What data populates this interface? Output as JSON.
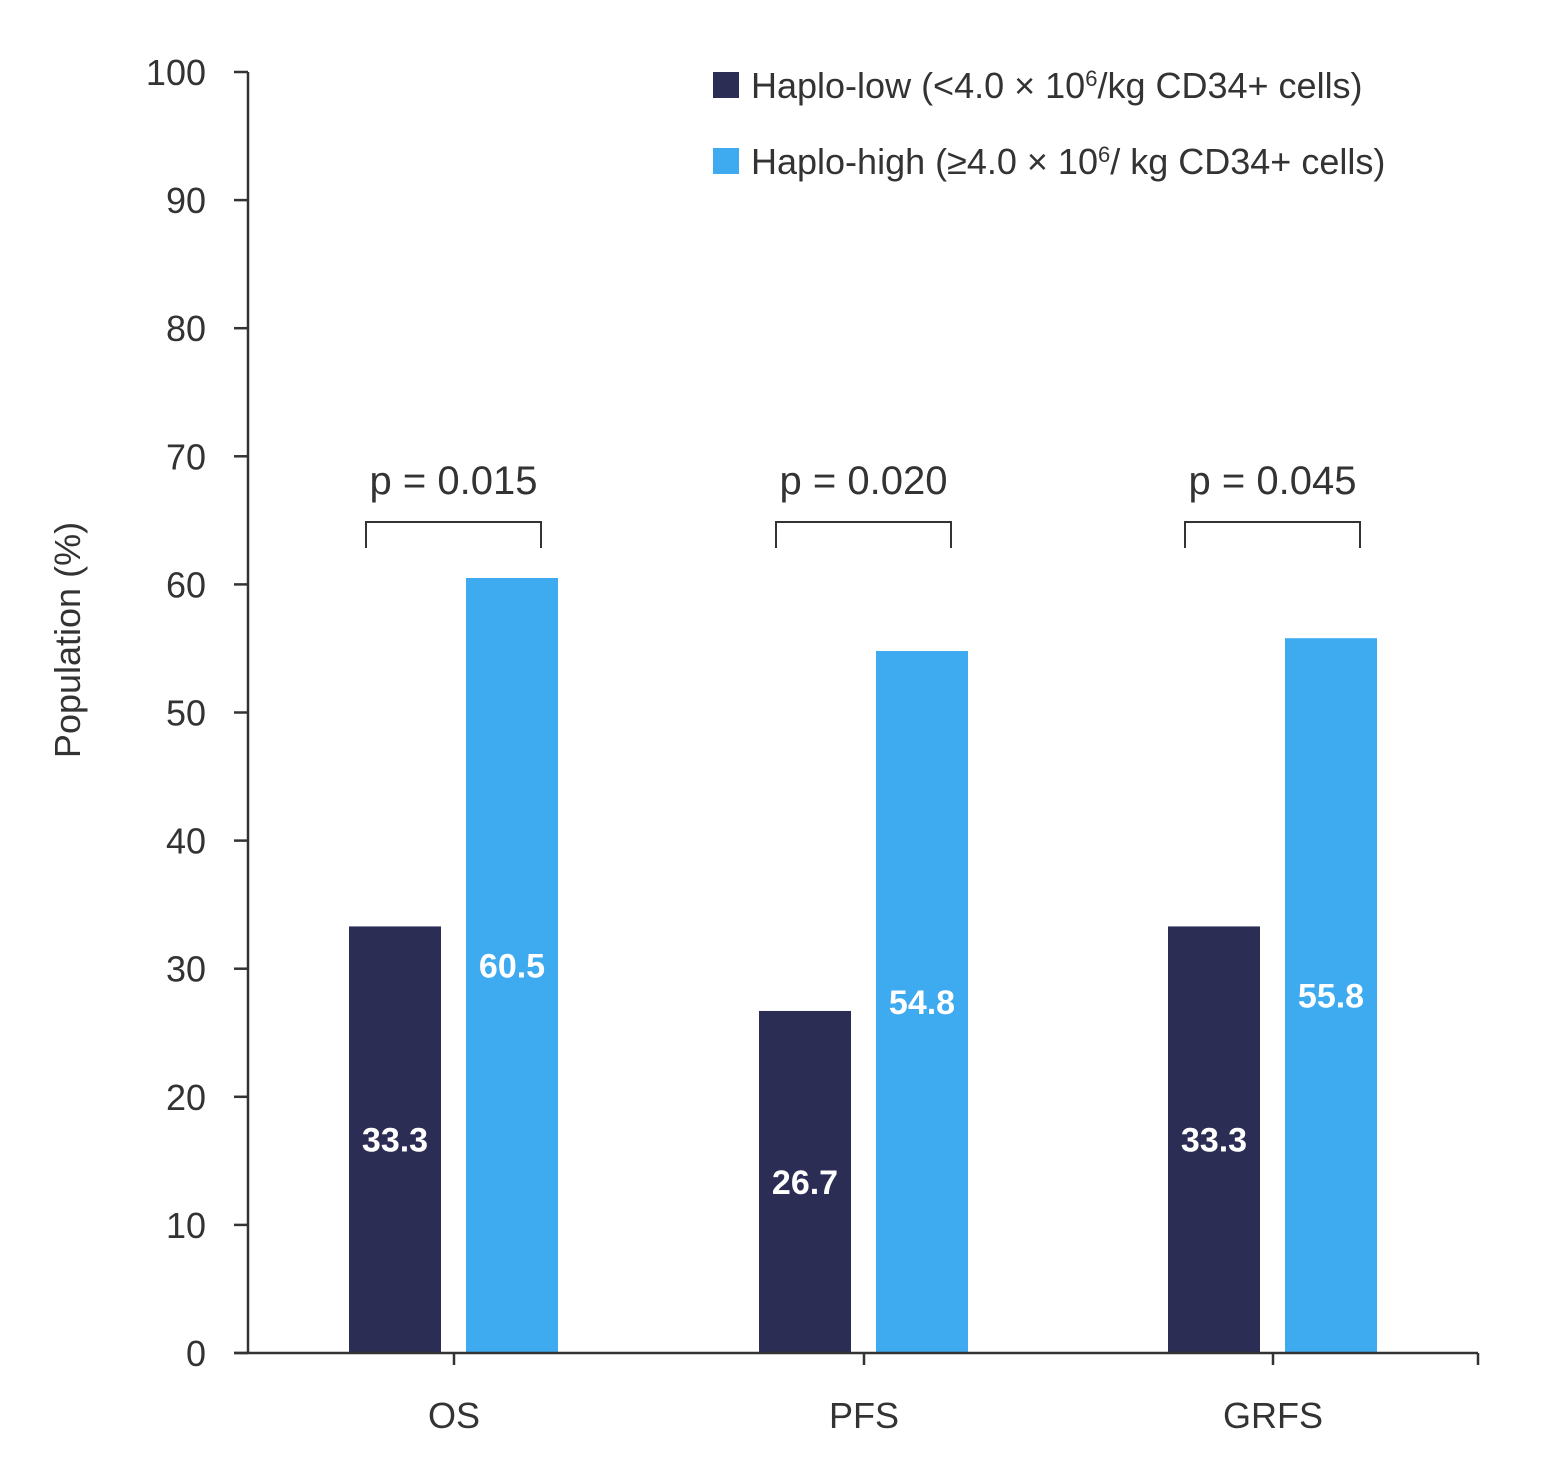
{
  "chart_data": {
    "type": "bar",
    "categories": [
      "OS",
      "PFS",
      "GRFS"
    ],
    "series": [
      {
        "name_parts": {
          "pre": "Haplo-low (<4.0 × 10",
          "sup": "6",
          "post": "/kg CD34+ cells)"
        },
        "values": [
          33.3,
          26.7,
          33.3
        ],
        "color": "#2b2d54"
      },
      {
        "name_parts": {
          "pre": "Haplo-high (≥4.0 × 10",
          "sup": "6",
          "post": "/ kg CD34+ cells)"
        },
        "values": [
          60.5,
          54.8,
          55.8
        ],
        "color": "#3eaaef"
      }
    ],
    "p_values": [
      "p = 0.015",
      "p = 0.020",
      "p = 0.045"
    ],
    "ylabel": "Population (%)",
    "xlabel": "",
    "ylim": [
      0,
      100
    ],
    "yticks": [
      0,
      10,
      20,
      30,
      40,
      50,
      60,
      70,
      80,
      90,
      100
    ],
    "grid": false,
    "legend_position": "top-right"
  }
}
